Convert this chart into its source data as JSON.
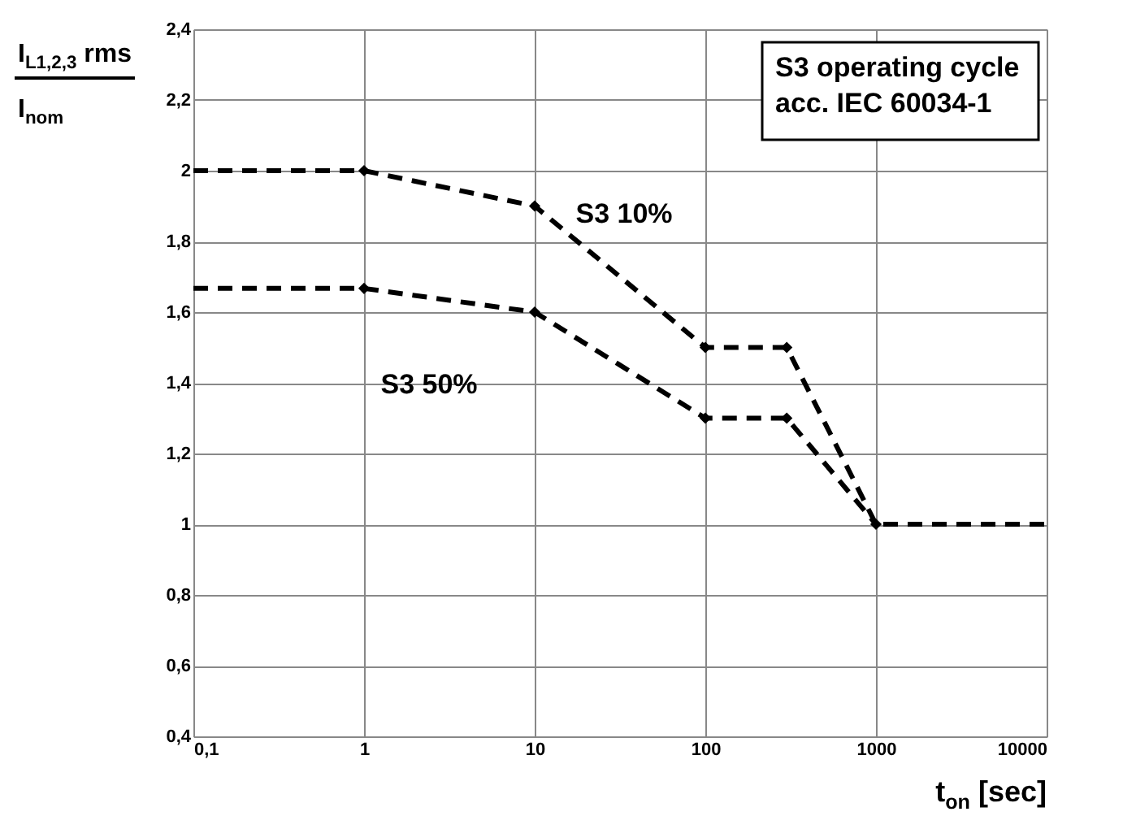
{
  "chart_data": {
    "type": "line",
    "xlabel": "t$_{on}$ [sec]",
    "ylabel": "I$_{L1,2,3}$ rms\nI$_{nom}$",
    "log": "x",
    "grid": true,
    "line_style": "dashed",
    "xlim": [
      0.1,
      10000
    ],
    "xticks": [
      {
        "value": 0.1,
        "label": "0,1"
      },
      1,
      10,
      100,
      1000,
      10000
    ],
    "ylim": [
      0.4,
      2.4
    ],
    "yticks": [
      {
        "value": 0.4,
        "label": "0,4"
      },
      {
        "value": 0.6,
        "label": "0,6"
      },
      {
        "value": 0.8,
        "label": "0,8"
      },
      1,
      {
        "value": 1.2,
        "label": "1,2"
      },
      {
        "value": 1.4,
        "label": "1,4"
      },
      {
        "value": 1.6,
        "label": "1,6"
      },
      {
        "value": 1.8,
        "label": "1,8"
      },
      2,
      {
        "value": 2.2,
        "label": "2,2"
      },
      {
        "value": 2.4,
        "label": "2,4"
      }
    ],
    "series": [
      {
        "name": "S3 10%",
        "color": "#000000",
        "marker": "none",
        "x": [
          0.1,
          1,
          10,
          100,
          300,
          1000,
          10000
        ],
        "values": [
          2,
          2,
          1.9,
          1.5,
          1.5,
          1,
          1
        ]
      },
      {
        "type": "scatter",
        "color": "#000000",
        "marker": "diamond",
        "x": [
          1,
          10,
          100,
          300,
          1000
        ],
        "values": [
          2,
          1.9,
          1.5,
          1.5,
          1
        ]
      },
      {
        "name": "S3 50%",
        "color": "#000000",
        "marker": "none",
        "x": [
          0.1,
          1,
          10,
          100,
          300,
          1000
        ],
        "values": [
          1.667,
          1.667,
          1.6,
          1.3,
          1.3,
          1
        ]
      },
      {
        "type": "scatter",
        "color": "#000000",
        "marker": "diamond",
        "x": [
          1,
          10,
          100,
          300
        ],
        "values": [
          1.667,
          1.6,
          1.3,
          1.3
        ]
      }
    ],
    "annotations": [
      "S3 operating cycle\nacc. IEC 60034-1"
    ]
  }
}
